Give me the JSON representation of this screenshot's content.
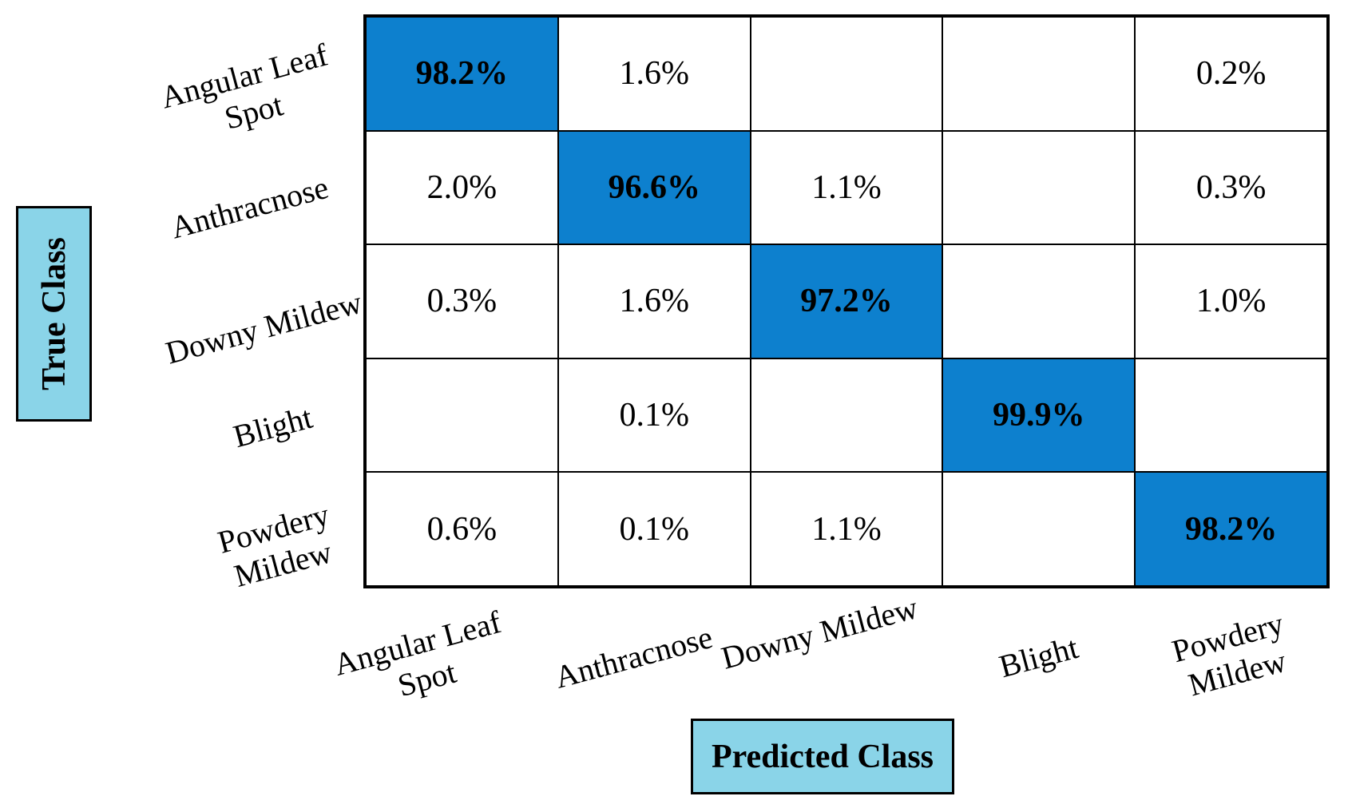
{
  "figure": {
    "ylabel": "True Class",
    "xlabel": "Predicted Class"
  },
  "chart_data": {
    "type": "heatmap",
    "subtype": "confusion-matrix",
    "xlabel": "Predicted Class",
    "ylabel": "True Class",
    "categories": [
      "Angular Leaf Spot",
      "Anthracnose",
      "Downy Mildew",
      "Blight",
      "Powdery Mildew"
    ],
    "rows": [
      {
        "label": "Angular Leaf Spot",
        "values": [
          "98.2%",
          "1.6%",
          "",
          "",
          "0.2%"
        ]
      },
      {
        "label": "Anthracnose",
        "values": [
          "2.0%",
          "96.6%",
          "1.1%",
          "",
          "0.3%"
        ]
      },
      {
        "label": "Downy Mildew",
        "values": [
          "0.3%",
          "1.6%",
          "97.2%",
          "",
          "1.0%"
        ]
      },
      {
        "label": "Blight",
        "values": [
          "",
          "0.1%",
          "",
          "99.9%",
          ""
        ]
      },
      {
        "label": "Powdery Mildew",
        "values": [
          "0.6%",
          "0.1%",
          "1.1%",
          "",
          "98.2%"
        ]
      }
    ],
    "values_numeric": [
      [
        98.2,
        1.6,
        null,
        null,
        0.2
      ],
      [
        2.0,
        96.6,
        1.1,
        null,
        0.3
      ],
      [
        0.3,
        1.6,
        97.2,
        null,
        1.0
      ],
      [
        null,
        0.1,
        null,
        99.9,
        null
      ],
      [
        0.6,
        0.1,
        1.1,
        null,
        98.2
      ]
    ],
    "diagonal_highlighted": true,
    "row_labels_display": [
      "Angular Leaf\nSpot",
      "Anthracnose",
      "Downy Mildew",
      "Blight",
      "Powdery\nMildew"
    ],
    "col_labels_display": [
      "Angular Leaf\nSpot",
      "Anthracnose",
      "Downy Mildew",
      "Blight",
      "Powdery\nMildew"
    ],
    "colors": {
      "diagonal_cell": "#0d80ce",
      "axis_label_box": "#8ad4e8",
      "grid_border": "#000000",
      "cell_background": "#ffffff",
      "text": "#000000"
    },
    "grid_on": true,
    "legend": null,
    "title": ""
  }
}
